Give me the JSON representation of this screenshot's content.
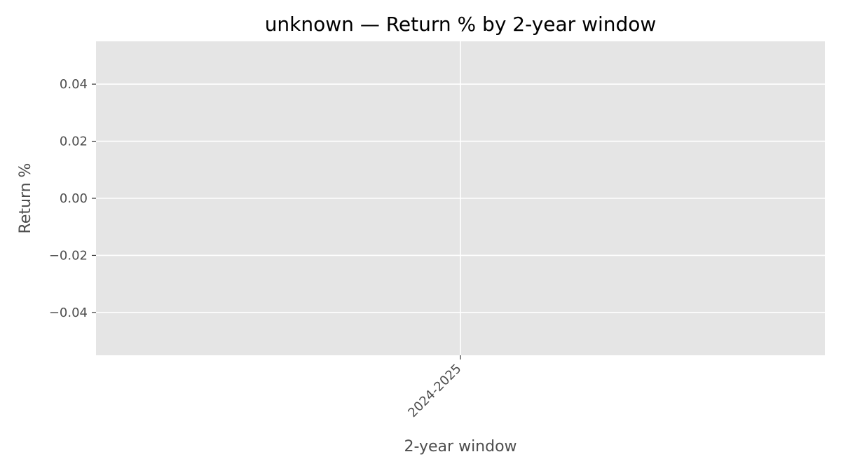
{
  "chart_data": {
    "type": "bar",
    "title": "unknown — Return % by 2-year window",
    "xlabel": "2-year window",
    "ylabel": "Return %",
    "categories": [
      "2024-2025"
    ],
    "values": [
      0
    ],
    "ylim": [
      -0.055,
      0.055
    ],
    "yticks": [
      0.04,
      0.02,
      0.0,
      -0.02,
      -0.04
    ],
    "ytick_labels": [
      "0.04",
      "0.02",
      "0.00",
      "−0.02",
      "−0.04"
    ],
    "grid": true,
    "legend": "none",
    "colors": {
      "plot_background": "#e5e5e5",
      "grid": "#ffffff",
      "tick_text": "#4d4d4d",
      "title": "#000000"
    }
  }
}
